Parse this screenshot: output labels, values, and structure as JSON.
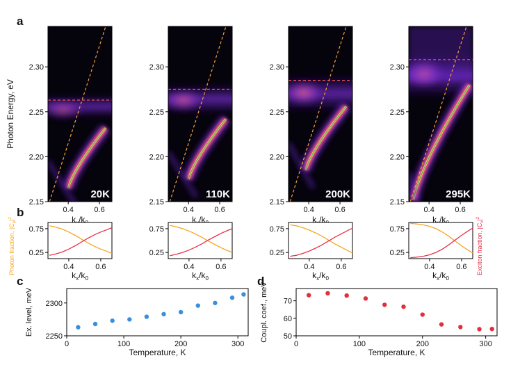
{
  "colors": {
    "photon": "#f5a623",
    "exciton": "#e8304a",
    "exciton_level_line": "#f04f5a",
    "photon_line": "#f5a035",
    "polariton_fit": "#4caf50",
    "scatter_c": "#3a8fdc",
    "scatter_d": "#e0303c"
  },
  "panel_letters": {
    "a": "a",
    "b": "b",
    "c": "c",
    "d": "d"
  },
  "chart_data": [
    {
      "id": "a",
      "type": "heatmap",
      "description_axis": {
        "ylabel": "Photon Energy, eV",
        "xlabel_base": "k",
        "xlabel_sub1": "x",
        "xlabel_sep": "/k",
        "xlabel_sub2": "0",
        "xticks": [
          0.4,
          0.6
        ],
        "xtick_labels": [
          "0.4",
          "0.6"
        ],
        "yticks": [
          2.15,
          2.2,
          2.25,
          2.3
        ],
        "ytick_labels": [
          "2.15",
          "2.20",
          "2.25",
          "2.30"
        ],
        "xlim": [
          0.27,
          0.68
        ],
        "ylim": [
          2.15,
          2.345
        ]
      },
      "panels": [
        {
          "label": "20K",
          "exciton_level": 2.263,
          "photon_line": {
            "k0": 0.28,
            "e0": 2.15,
            "k1": 0.64,
            "e1": 2.345
          },
          "lp_branch": {
            "k_start": 0.4,
            "e_start": 2.165,
            "k_end": 0.64,
            "e_end": 2.232
          }
        },
        {
          "label": "110K",
          "exciton_level": 2.275,
          "photon_line": {
            "k0": 0.28,
            "e0": 2.15,
            "k1": 0.64,
            "e1": 2.345
          },
          "lp_branch": {
            "k_start": 0.4,
            "e_start": 2.175,
            "k_end": 0.64,
            "e_end": 2.242
          }
        },
        {
          "label": "200K",
          "exciton_level": 2.285,
          "photon_line": {
            "k0": 0.28,
            "e0": 2.15,
            "k1": 0.64,
            "e1": 2.345
          },
          "lp_branch": {
            "k_start": 0.38,
            "e_start": 2.185,
            "k_end": 0.64,
            "e_end": 2.256
          }
        },
        {
          "label": "295K",
          "exciton_level": 2.308,
          "photon_line": {
            "k0": 0.28,
            "e0": 2.15,
            "k1": 0.64,
            "e1": 2.345
          },
          "lp_branch": {
            "k_start": 0.3,
            "e_start": 2.152,
            "k_end": 0.66,
            "e_end": 2.28
          }
        }
      ]
    },
    {
      "id": "b",
      "type": "line",
      "ylabel_left": "Photon fraction, |C",
      "ylabel_left_sub": "p",
      "ylabel_left_sup": "|",
      "ylabel_left_pow": "2",
      "ylabel_right": "Exciton fraction, |C",
      "ylabel_right_sub": "x",
      "ylabel_right_sup": "|",
      "ylabel_right_pow": "2",
      "xticks": [
        0.4,
        0.6
      ],
      "xtick_labels": [
        "0.4",
        "0.6"
      ],
      "yticks": [
        0.25,
        0.75
      ],
      "ytick_labels": [
        "0.25",
        "0.75"
      ],
      "xlim": [
        0.27,
        0.67
      ],
      "ylim": [
        0.12,
        0.88
      ],
      "panels": [
        {
          "series": [
            {
              "name": "photon",
              "x": [
                0.28,
                0.32,
                0.36,
                0.4,
                0.44,
                0.48,
                0.52,
                0.56,
                0.6,
                0.64,
                0.67
              ],
              "y": [
                0.81,
                0.78,
                0.74,
                0.68,
                0.61,
                0.53,
                0.45,
                0.38,
                0.32,
                0.27,
                0.23
              ]
            },
            {
              "name": "exciton",
              "x": [
                0.28,
                0.32,
                0.36,
                0.4,
                0.44,
                0.48,
                0.52,
                0.56,
                0.6,
                0.64,
                0.67
              ],
              "y": [
                0.19,
                0.22,
                0.26,
                0.32,
                0.39,
                0.47,
                0.55,
                0.62,
                0.68,
                0.73,
                0.77
              ]
            }
          ]
        },
        {
          "series": [
            {
              "name": "photon",
              "x": [
                0.28,
                0.32,
                0.36,
                0.4,
                0.44,
                0.48,
                0.52,
                0.56,
                0.6,
                0.64,
                0.67
              ],
              "y": [
                0.82,
                0.79,
                0.75,
                0.7,
                0.64,
                0.57,
                0.49,
                0.42,
                0.35,
                0.29,
                0.25
              ]
            },
            {
              "name": "exciton",
              "x": [
                0.28,
                0.32,
                0.36,
                0.4,
                0.44,
                0.48,
                0.52,
                0.56,
                0.6,
                0.64,
                0.67
              ],
              "y": [
                0.18,
                0.21,
                0.25,
                0.3,
                0.36,
                0.43,
                0.51,
                0.58,
                0.65,
                0.71,
                0.75
              ]
            }
          ]
        },
        {
          "series": [
            {
              "name": "photon",
              "x": [
                0.28,
                0.32,
                0.36,
                0.4,
                0.44,
                0.48,
                0.52,
                0.56,
                0.6,
                0.64,
                0.67
              ],
              "y": [
                0.83,
                0.81,
                0.77,
                0.72,
                0.66,
                0.59,
                0.51,
                0.43,
                0.36,
                0.29,
                0.24
              ]
            },
            {
              "name": "exciton",
              "x": [
                0.28,
                0.32,
                0.36,
                0.4,
                0.44,
                0.48,
                0.52,
                0.56,
                0.6,
                0.64,
                0.67
              ],
              "y": [
                0.17,
                0.19,
                0.23,
                0.28,
                0.34,
                0.41,
                0.49,
                0.57,
                0.64,
                0.71,
                0.76
              ]
            }
          ]
        },
        {
          "series": [
            {
              "name": "photon",
              "x": [
                0.28,
                0.32,
                0.36,
                0.4,
                0.44,
                0.48,
                0.52,
                0.56,
                0.6,
                0.64,
                0.67
              ],
              "y": [
                0.86,
                0.85,
                0.83,
                0.8,
                0.75,
                0.68,
                0.59,
                0.49,
                0.39,
                0.3,
                0.24
              ]
            },
            {
              "name": "exciton",
              "x": [
                0.28,
                0.32,
                0.36,
                0.4,
                0.44,
                0.48,
                0.52,
                0.56,
                0.6,
                0.64,
                0.67
              ],
              "y": [
                0.14,
                0.15,
                0.17,
                0.2,
                0.25,
                0.32,
                0.41,
                0.51,
                0.61,
                0.7,
                0.76
              ]
            }
          ]
        }
      ]
    },
    {
      "id": "c",
      "type": "scatter",
      "xlabel": "Temperature, K",
      "ylabel": "Ex. level, meV",
      "xticks": [
        0,
        100,
        200,
        300
      ],
      "xtick_labels": [
        "0",
        "100",
        "200",
        "300"
      ],
      "yticks": [
        2250,
        2300
      ],
      "ytick_labels": [
        "2250",
        "2300"
      ],
      "xlim": [
        0,
        318
      ],
      "ylim": [
        2250,
        2322
      ],
      "x": [
        20,
        50,
        80,
        110,
        140,
        170,
        200,
        230,
        260,
        290,
        310
      ],
      "y": [
        2263,
        2268,
        2273,
        2275,
        2279,
        2283,
        2286,
        2296,
        2300,
        2308,
        2313
      ]
    },
    {
      "id": "d",
      "type": "scatter",
      "xlabel": "Temperature, K",
      "ylabel": "Coupl. coef., meV",
      "xticks": [
        0,
        100,
        200,
        300
      ],
      "xtick_labels": [
        "0",
        "100",
        "200",
        "300"
      ],
      "yticks": [
        50,
        60,
        70
      ],
      "ytick_labels": [
        "50",
        "60",
        "70"
      ],
      "xlim": [
        0,
        318
      ],
      "ylim": [
        50,
        77
      ],
      "x": [
        20,
        50,
        80,
        110,
        140,
        170,
        200,
        230,
        260,
        290,
        310
      ],
      "y": [
        73.2,
        74.3,
        73.0,
        71.3,
        67.7,
        66.6,
        62.1,
        56.5,
        55.0,
        53.8,
        53.9
      ]
    }
  ]
}
